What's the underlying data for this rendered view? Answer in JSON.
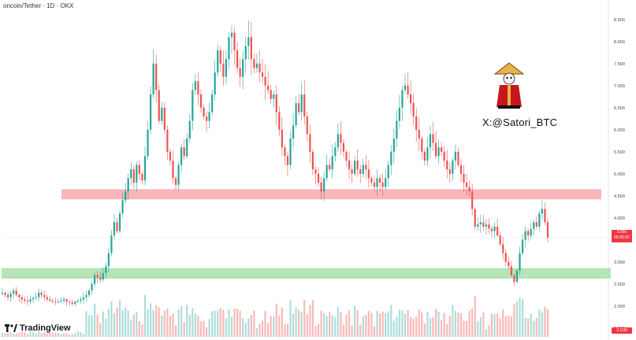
{
  "header": {
    "title": "oncoin/Tether · 1D · OKX"
  },
  "watermark": {
    "handle": "X:@Satori_BTC"
  },
  "branding": {
    "logo_text": "TradingView"
  },
  "price_tag": {
    "price": "3.550",
    "countdown": "06:50:30"
  },
  "volume_tag": {
    "value": "3.11M"
  },
  "chart_data": {
    "type": "candlestick",
    "y_axis": {
      "ticks": [
        "1.500",
        "2.000",
        "2.500",
        "3.000",
        "3.500",
        "4.000",
        "4.500",
        "5.000",
        "5.500",
        "6.000",
        "6.500",
        "7.000",
        "7.500",
        "8.000",
        "8.500"
      ],
      "range": [
        1.3,
        8.8
      ]
    },
    "zones": [
      {
        "kind": "resistance",
        "low": 4.42,
        "high": 4.65,
        "color": "#f7a9ae"
      },
      {
        "kind": "support",
        "low": 2.62,
        "high": 2.86,
        "color": "#a8dfa9"
      }
    ],
    "current_price": 3.55,
    "colors": {
      "up": "#26a69a",
      "down": "#ef5350"
    },
    "closes": [
      2.3,
      2.25,
      2.2,
      2.28,
      2.35,
      2.25,
      2.2,
      2.15,
      2.12,
      2.1,
      2.15,
      2.18,
      2.2,
      2.3,
      2.25,
      2.2,
      2.15,
      2.12,
      2.1,
      2.08,
      2.1,
      2.12,
      2.15,
      2.1,
      2.08,
      2.05,
      2.1,
      2.12,
      2.15,
      2.2,
      2.25,
      2.35,
      2.5,
      2.7,
      2.65,
      2.6,
      2.75,
      2.9,
      3.2,
      3.6,
      3.9,
      3.7,
      4.1,
      4.4,
      4.6,
      4.9,
      5.1,
      4.8,
      5.2,
      5.0,
      4.85,
      5.4,
      6.0,
      6.8,
      7.5,
      6.9,
      6.2,
      6.5,
      6.0,
      5.5,
      5.3,
      4.9,
      4.75,
      5.2,
      5.6,
      5.4,
      5.8,
      6.2,
      6.9,
      7.1,
      6.8,
      6.5,
      6.3,
      6.2,
      6.4,
      6.8,
      7.3,
      7.8,
      7.5,
      7.2,
      7.6,
      8.1,
      8.2,
      7.8,
      7.4,
      7.2,
      7.6,
      7.9,
      8.1,
      7.6,
      7.4,
      7.5,
      7.3,
      7.2,
      7.0,
      6.9,
      6.7,
      6.8,
      6.4,
      6.0,
      5.6,
      5.4,
      5.2,
      5.8,
      6.1,
      6.6,
      6.4,
      6.8,
      6.3,
      5.9,
      5.5,
      5.1,
      5.0,
      4.8,
      4.6,
      4.9,
      5.2,
      5.1,
      5.4,
      5.6,
      5.9,
      5.7,
      5.5,
      5.3,
      5.1,
      5.0,
      5.3,
      5.1,
      5.0,
      5.2,
      5.1,
      4.9,
      4.8,
      4.7,
      4.9,
      4.8,
      4.7,
      4.9,
      5.2,
      5.5,
      5.8,
      6.2,
      6.5,
      6.9,
      7.0,
      6.8,
      6.6,
      6.3,
      6.0,
      5.8,
      5.5,
      5.3,
      5.6,
      5.9,
      5.7,
      5.4,
      5.6,
      5.5,
      5.3,
      5.1,
      5.0,
      5.3,
      5.5,
      5.2,
      5.0,
      4.8,
      4.7,
      4.6,
      4.2,
      3.8,
      3.85,
      3.9,
      3.8,
      3.85,
      3.75,
      3.7,
      3.8,
      3.6,
      3.4,
      3.2,
      3.0,
      2.9,
      2.7,
      2.55,
      2.8,
      3.2,
      3.5,
      3.7,
      3.6,
      3.75,
      3.9,
      3.8,
      4.1,
      4.2,
      3.9,
      3.55
    ]
  }
}
